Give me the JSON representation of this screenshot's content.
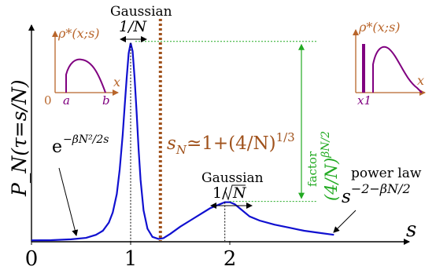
{
  "chart_data": {
    "type": "line",
    "xlabel": "s",
    "ylabel": "P_N(τ=s/N)",
    "x_ticks": [
      "0",
      "1",
      "2"
    ],
    "x_tick_values": [
      0,
      1,
      2
    ],
    "xlim": [
      0,
      3.1
    ],
    "ylim": [
      0,
      1
    ],
    "series": [
      {
        "values_x": [
          0.0,
          0.2,
          0.4,
          0.55,
          0.65,
          0.72,
          0.78,
          0.82,
          0.86,
          0.89,
          0.92,
          0.94,
          0.96,
          0.98,
          1.0,
          1.02,
          1.04,
          1.06,
          1.08,
          1.1,
          1.13,
          1.17,
          1.22,
          1.28,
          1.33,
          1.4,
          1.5,
          1.6,
          1.7,
          1.8,
          1.9,
          1.95,
          2.0,
          2.05,
          2.1,
          2.2,
          2.3,
          2.45,
          2.6,
          2.75,
          2.9,
          3.05
        ],
        "values_y": [
          0.003,
          0.004,
          0.008,
          0.015,
          0.03,
          0.05,
          0.09,
          0.14,
          0.23,
          0.35,
          0.52,
          0.66,
          0.8,
          0.92,
          0.97,
          0.93,
          0.8,
          0.63,
          0.45,
          0.3,
          0.15,
          0.06,
          0.02,
          0.01,
          0.014,
          0.035,
          0.07,
          0.1,
          0.13,
          0.16,
          0.18,
          0.19,
          0.19,
          0.18,
          0.16,
          0.12,
          0.1,
          0.08,
          0.065,
          0.05,
          0.04,
          0.03
        ]
      }
    ],
    "colors": {
      "curve": "#1010d0",
      "threshold": "#a0521c",
      "guides": "#22aa22",
      "inset": "#800080",
      "inset_axis": "#b8652a"
    },
    "threshold_x": 1.3,
    "annotations": {
      "gaussian_1": "Gaussian",
      "gaussian_1_width": "1/N",
      "gaussian_2": "Gaussian",
      "gaussian_2_width_num": "1/",
      "gaussian_2_width_rad": "N",
      "left_tail_base": "e",
      "left_tail_exp": "−βN²/2s",
      "threshold_s": "s",
      "threshold_sub": "N",
      "threshold_rhs": "≃1+(4/N)",
      "threshold_exp": "1/3",
      "factor_word": "factor",
      "factor_expr": "(4/N)",
      "factor_exp": "βN/2",
      "power_law_label": "power law",
      "power_law_base": "s",
      "power_law_exp": "−2−βN/2"
    },
    "insets": [
      {
        "ylabel": "ρ*(x;s)",
        "xlabel": "x",
        "origin": "0",
        "tick_a": "a",
        "tick_b": "b"
      },
      {
        "ylabel": "ρ*(x;s)",
        "xlabel": "x",
        "tick_x1": "x1"
      }
    ]
  }
}
